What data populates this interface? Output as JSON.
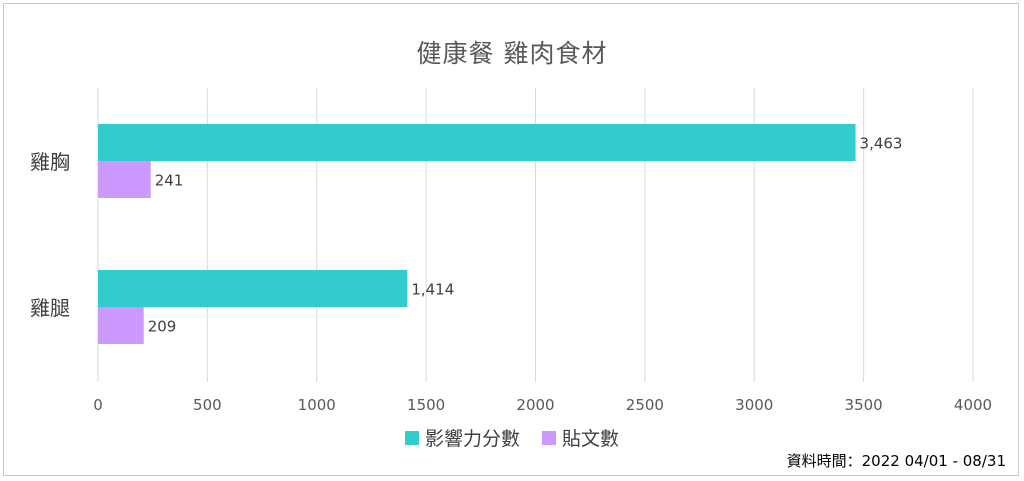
{
  "chart_data": {
    "type": "bar",
    "orientation": "horizontal",
    "title": "健康餐 雞肉食材",
    "categories": [
      "雞胸",
      "雞腿"
    ],
    "series": [
      {
        "name": "影響力分數",
        "values": [
          3463,
          1414
        ],
        "labels": [
          "3,463",
          "1,414"
        ],
        "color": "#33cccc"
      },
      {
        "name": "貼文數",
        "values": [
          241,
          209
        ],
        "labels": [
          "241",
          "209"
        ],
        "color": "#cc99ff"
      }
    ],
    "xlim": [
      0,
      4000
    ],
    "xticks": [
      0,
      500,
      1000,
      1500,
      2000,
      2500,
      3000,
      3500,
      4000
    ],
    "grid": true,
    "legend": "bottom"
  },
  "footnote": "資料時間：2022 04/01 - 08/31"
}
